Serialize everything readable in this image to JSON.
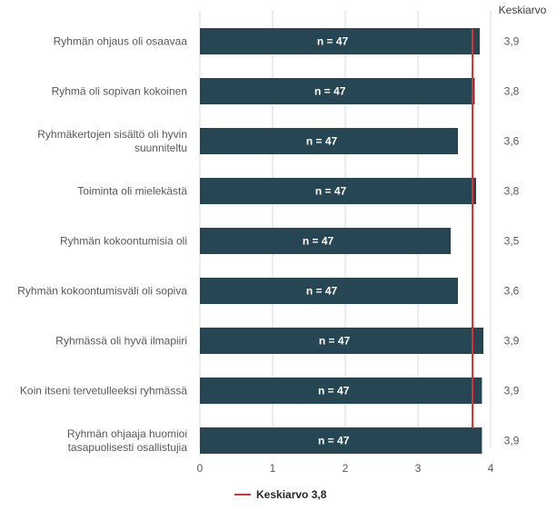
{
  "chart_data": {
    "type": "bar",
    "orientation": "horizontal",
    "categories": [
      [
        "Ryhmän ohjaus oli osaavaa"
      ],
      [
        "Ryhmä oli sopivan kokoinen"
      ],
      [
        "Ryhmäkertojen sisältö oli hyvin",
        "suunniteltu"
      ],
      [
        "Toiminta oli mielekästä"
      ],
      [
        "Ryhmän kokoontumisia oli"
      ],
      [
        "Ryhmän kokoontumisväli oli sopiva"
      ],
      [
        "Ryhmässä oli hyvä ilmapiiri"
      ],
      [
        "Koin itseni tervetulleeksi ryhmässä"
      ],
      [
        "Ryhmän ohjaaja huomioi",
        "tasapuolisesti osallistujia"
      ]
    ],
    "values": [
      3.85,
      3.78,
      3.55,
      3.8,
      3.45,
      3.55,
      3.9,
      3.88,
      3.88
    ],
    "bar_labels": [
      "n = 47",
      "n = 47",
      "n = 47",
      "n = 47",
      "n = 47",
      "n = 47",
      "n = 47",
      "n = 47",
      "n = 47"
    ],
    "average_labels": [
      "3,9",
      "3,8",
      "3,6",
      "3,8",
      "3,5",
      "3,6",
      "3,9",
      "3,9",
      "3,9"
    ],
    "average_column_header": "Keskiarvo",
    "overall_average": 3.75,
    "legend": {
      "label": "Keskiarvo 3,8",
      "placement": "bottom-center"
    },
    "xticks": [
      0,
      1,
      2,
      3,
      4
    ],
    "xlim": [
      0,
      4
    ],
    "grid": true,
    "colors": {
      "bar": "#264653",
      "average_line": "#e03131",
      "grid": "#d9d9d9"
    }
  }
}
